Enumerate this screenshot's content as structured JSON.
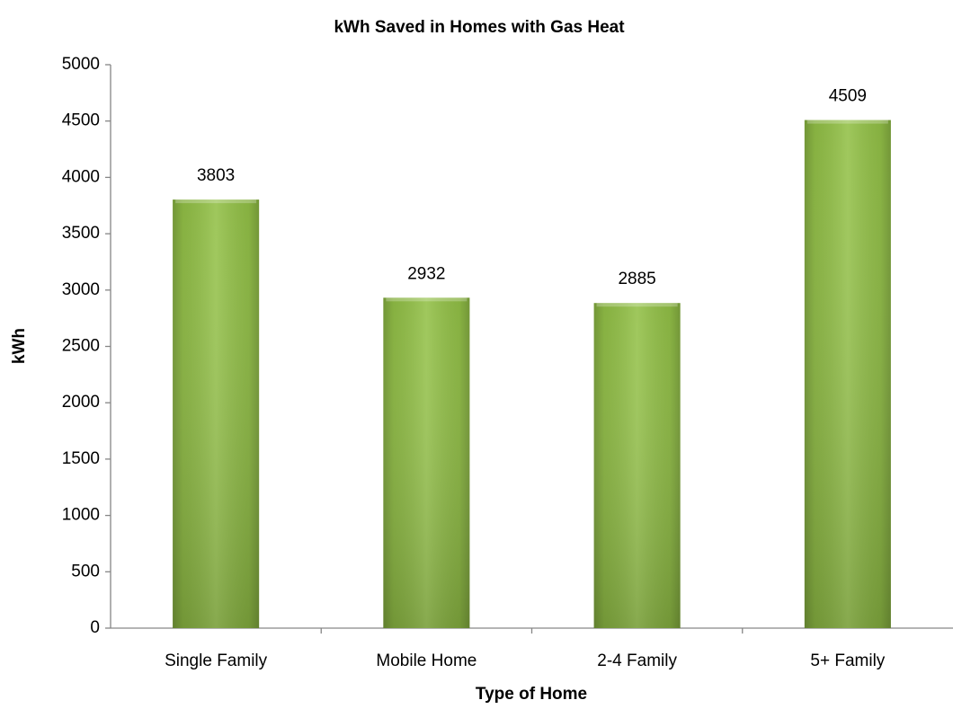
{
  "chart_data": {
    "type": "bar",
    "title": "kWh Saved in Homes with Gas Heat",
    "x_label": "Type of Home",
    "y_label": "kWh",
    "categories": [
      "Single Family",
      "Mobile Home",
      "2-4 Family",
      "5+ Family"
    ],
    "values": [
      3803,
      2932,
      2885,
      4509
    ],
    "color": "#92c046",
    "ylim": [
      0,
      5000
    ],
    "yticks": [
      0,
      500,
      1000,
      1500,
      2000,
      2500,
      3000,
      3500,
      4000,
      4500,
      5000
    ],
    "grid": false
  }
}
